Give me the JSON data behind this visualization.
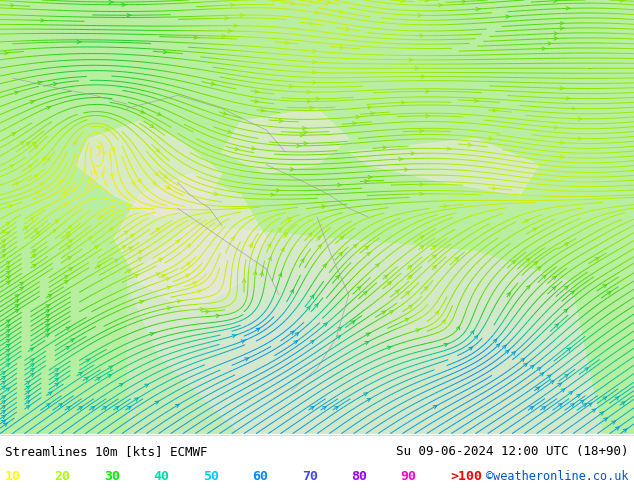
{
  "title_left": "Streamlines 10m [kts] ECMWF",
  "title_right": "Su 09-06-2024 12:00 UTC (18+90)",
  "credit": "©weatheronline.co.uk",
  "legend_values": [
    "10",
    "20",
    "30",
    "40",
    "50",
    "60",
    "70",
    "80",
    "90",
    ">100"
  ],
  "legend_colors": [
    "#ffff00",
    "#aaff00",
    "#00ee00",
    "#00ddaa",
    "#00ccff",
    "#0088ff",
    "#4444ff",
    "#9900ff",
    "#ff00cc",
    "#ff0000"
  ],
  "bg_color": "#bbffbb",
  "map_bg_green": "#aaffaa",
  "map_bg_gray": "#dddddd",
  "fig_width": 6.34,
  "fig_height": 4.9,
  "dpi": 100,
  "bottom_bar_color": "#ffffff",
  "bottom_text_color": "#000000",
  "credit_color": "#0055cc",
  "title_fontsize": 9,
  "legend_fontsize": 9,
  "stream_colors": [
    "#ffee00",
    "#ccee00",
    "#88dd00",
    "#44cc00",
    "#00cc44",
    "#00ccaa",
    "#00aacc",
    "#0088ff"
  ],
  "boundary_color": "#aaaaaa",
  "ocean_color": "#ddeecc"
}
